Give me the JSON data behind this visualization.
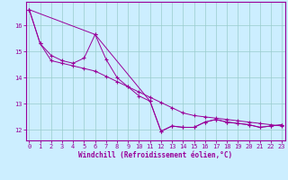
{
  "xlabel": "Windchill (Refroidissement éolien,°C)",
  "bg_color": "#cceeff",
  "line_color": "#990099",
  "grid_color": "#99cccc",
  "x_ticks": [
    0,
    1,
    2,
    3,
    4,
    5,
    6,
    7,
    8,
    9,
    10,
    11,
    12,
    13,
    14,
    15,
    16,
    17,
    18,
    19,
    20,
    21,
    22,
    23
  ],
  "y_ticks": [
    12,
    13,
    14,
    15,
    16
  ],
  "ylim": [
    11.6,
    16.9
  ],
  "xlim": [
    -0.3,
    23.3
  ],
  "series1_x": [
    0,
    1,
    2,
    3,
    4,
    5,
    6,
    7,
    8,
    9,
    10,
    11,
    12,
    13,
    14,
    15,
    16,
    17,
    18,
    19,
    20,
    21,
    22,
    23
  ],
  "series1_y": [
    16.6,
    15.3,
    14.85,
    14.65,
    14.55,
    14.75,
    15.65,
    14.7,
    14.0,
    13.65,
    13.3,
    13.1,
    11.95,
    12.15,
    12.1,
    12.1,
    12.3,
    12.4,
    12.3,
    12.25,
    12.2,
    12.1,
    12.15,
    12.2
  ],
  "series2_x": [
    0,
    1,
    2,
    3,
    4,
    5,
    6,
    7,
    8,
    9,
    10,
    11,
    12,
    13,
    14,
    15,
    16,
    17,
    18,
    19,
    20,
    21,
    22,
    23
  ],
  "series2_y": [
    16.6,
    15.3,
    14.65,
    14.55,
    14.45,
    14.35,
    14.25,
    14.05,
    13.85,
    13.65,
    13.45,
    13.25,
    13.05,
    12.85,
    12.65,
    12.55,
    12.5,
    12.45,
    12.4,
    12.35,
    12.3,
    12.25,
    12.2,
    12.15
  ],
  "series3_x": [
    0,
    6,
    11,
    12,
    13,
    14,
    15,
    16,
    17,
    18,
    19,
    20,
    21,
    22,
    23
  ],
  "series3_y": [
    16.6,
    15.65,
    13.1,
    11.95,
    12.15,
    12.1,
    12.1,
    12.3,
    12.4,
    12.3,
    12.25,
    12.2,
    12.1,
    12.15,
    12.2
  ]
}
